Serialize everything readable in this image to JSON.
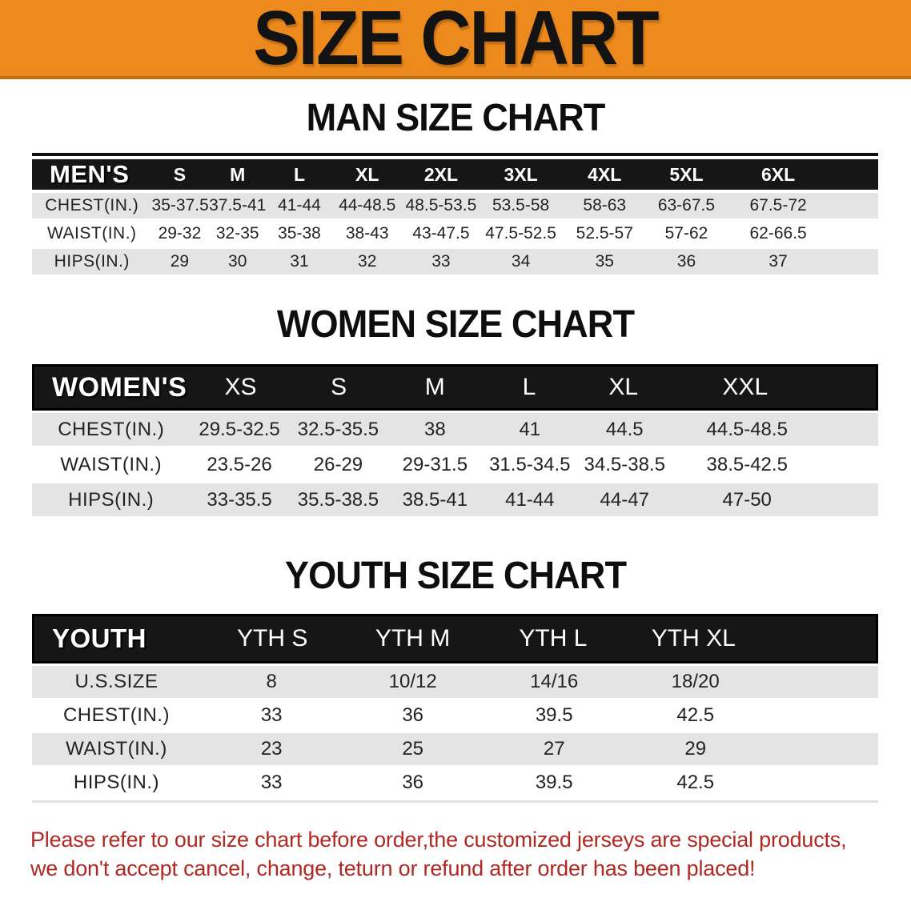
{
  "banner": {
    "title": "SIZE CHART"
  },
  "colors": {
    "banner_bg": "#ec8a1e",
    "banner_edge": "#c06f15",
    "table_header_bg": "#161616",
    "row_gray": "#e4e4e4",
    "note_red": "#b02822"
  },
  "chart_data": [
    {
      "type": "table",
      "title": "MAN SIZE CHART",
      "corner_label": "MEN'S",
      "columns": [
        "S",
        "M",
        "L",
        "XL",
        "2XL",
        "3XL",
        "4XL",
        "5XL",
        "6XL"
      ],
      "rows": [
        {
          "label": "CHEST(IN.)",
          "values": [
            "35-37.5",
            "37.5-41",
            "41-44",
            "44-48.5",
            "48.5-53.5",
            "53.5-58",
            "58-63",
            "63-67.5",
            "67.5-72"
          ]
        },
        {
          "label": "WAIST(IN.)",
          "values": [
            "29-32",
            "32-35",
            "35-38",
            "38-43",
            "43-47.5",
            "47.5-52.5",
            "52.5-57",
            "57-62",
            "62-66.5"
          ]
        },
        {
          "label": "HIPS(IN.)",
          "values": [
            "29",
            "30",
            "31",
            "32",
            "33",
            "34",
            "35",
            "36",
            "37"
          ]
        }
      ]
    },
    {
      "type": "table",
      "title": "WOMEN SIZE CHART",
      "corner_label": "WOMEN'S",
      "columns": [
        "XS",
        "S",
        "M",
        "L",
        "XL",
        "XXL"
      ],
      "rows": [
        {
          "label": "CHEST(IN.)",
          "values": [
            "29.5-32.5",
            "32.5-35.5",
            "38",
            "41",
            "44.5",
            "44.5-48.5"
          ]
        },
        {
          "label": "WAIST(IN.)",
          "values": [
            "23.5-26",
            "26-29",
            "29-31.5",
            "31.5-34.5",
            "34.5-38.5",
            "38.5-42.5"
          ]
        },
        {
          "label": "HIPS(IN.)",
          "values": [
            "33-35.5",
            "35.5-38.5",
            "38.5-41",
            "41-44",
            "44-47",
            "47-50"
          ]
        }
      ]
    },
    {
      "type": "table",
      "title": "YOUTH SIZE CHART",
      "corner_label": "YOUTH",
      "columns": [
        "YTH S",
        "YTH M",
        "YTH L",
        "YTH XL"
      ],
      "rows": [
        {
          "label": "U.S.SIZE",
          "values": [
            "8",
            "10/12",
            "14/16",
            "18/20"
          ]
        },
        {
          "label": "CHEST(IN.)",
          "values": [
            "33",
            "36",
            "39.5",
            "42.5"
          ]
        },
        {
          "label": "WAIST(IN.)",
          "values": [
            "23",
            "25",
            "27",
            "29"
          ]
        },
        {
          "label": "HIPS(IN.)",
          "values": [
            "33",
            "36",
            "39.5",
            "42.5"
          ]
        }
      ]
    }
  ],
  "footnote": {
    "line1": "Please refer to our size chart before order,the customized jerseys are special products,",
    "line2": "we don't accept cancel, change, teturn or refund after order has been placed!"
  }
}
